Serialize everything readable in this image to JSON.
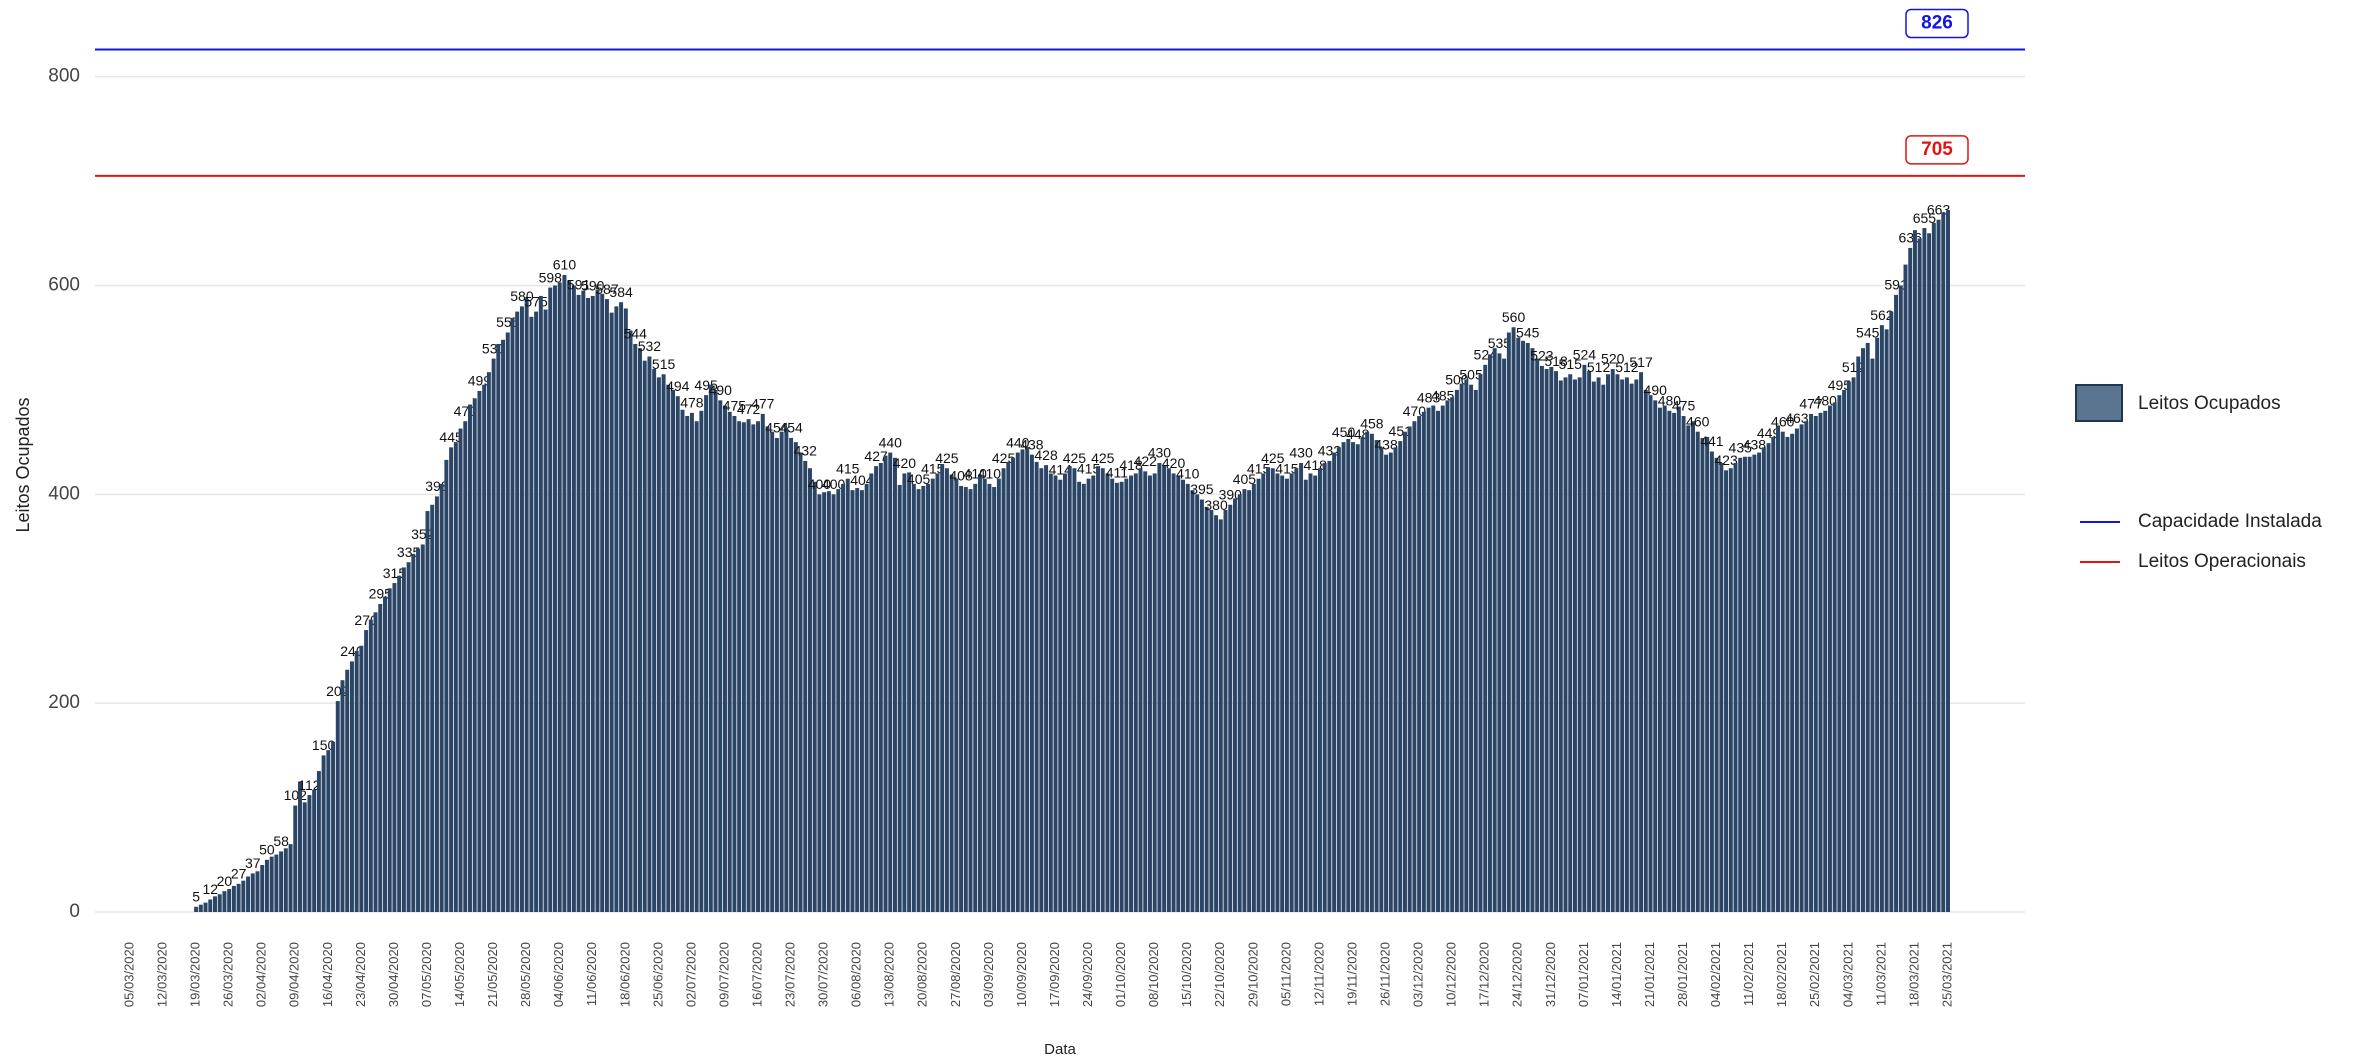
{
  "chart_data": {
    "type": "bar",
    "y_label": "Leitos Ocupados",
    "x_label": "Data",
    "color": "#2b4566",
    "grid": true,
    "ylim": [
      0,
      860
    ],
    "yticks": [
      0,
      200,
      400,
      600,
      800
    ],
    "legend": {
      "name": "Leitos Ocupados"
    },
    "hlines": [
      {
        "name": "Capacidade Instalada",
        "value": 826,
        "color": "#1414e0"
      },
      {
        "name": "Leitos Operacionais",
        "value": 705,
        "color": "#e01414"
      }
    ],
    "categories": [
      "05/03/2020",
      null,
      null,
      null,
      null,
      null,
      null,
      "12/03/2020",
      null,
      null,
      null,
      null,
      null,
      null,
      "19/03/2020",
      null,
      null,
      null,
      null,
      null,
      null,
      "26/03/2020",
      null,
      null,
      null,
      null,
      null,
      null,
      "02/04/2020",
      null,
      null,
      null,
      null,
      null,
      null,
      "09/04/2020",
      null,
      null,
      null,
      null,
      null,
      null,
      "16/04/2020",
      null,
      null,
      null,
      null,
      null,
      null,
      "23/04/2020",
      null,
      null,
      null,
      null,
      null,
      null,
      "30/04/2020",
      null,
      null,
      null,
      null,
      null,
      null,
      "07/05/2020",
      null,
      null,
      null,
      null,
      null,
      null,
      "14/05/2020",
      null,
      null,
      null,
      null,
      null,
      null,
      "21/05/2020",
      null,
      null,
      null,
      null,
      null,
      null,
      "28/05/2020",
      null,
      null,
      null,
      null,
      null,
      null,
      "04/06/2020",
      null,
      null,
      null,
      null,
      null,
      null,
      "11/06/2020",
      null,
      null,
      null,
      null,
      null,
      null,
      "18/06/2020",
      null,
      null,
      null,
      null,
      null,
      null,
      "25/06/2020",
      null,
      null,
      null,
      null,
      null,
      null,
      "02/07/2020",
      null,
      null,
      null,
      null,
      null,
      null,
      "09/07/2020",
      null,
      null,
      null,
      null,
      null,
      null,
      "16/07/2020",
      null,
      null,
      null,
      null,
      null,
      null,
      "23/07/2020",
      null,
      null,
      null,
      null,
      null,
      null,
      "30/07/2020",
      null,
      null,
      null,
      null,
      null,
      null,
      "06/08/2020",
      null,
      null,
      null,
      null,
      null,
      null,
      "13/08/2020",
      null,
      null,
      null,
      null,
      null,
      null,
      "20/08/2020",
      null,
      null,
      null,
      null,
      null,
      null,
      "27/08/2020",
      null,
      null,
      null,
      null,
      null,
      null,
      "03/09/2020",
      null,
      null,
      null,
      null,
      null,
      null,
      "10/09/2020",
      null,
      null,
      null,
      null,
      null,
      null,
      "17/09/2020",
      null,
      null,
      null,
      null,
      null,
      null,
      "24/09/2020",
      null,
      null,
      null,
      null,
      null,
      null,
      "01/10/2020",
      null,
      null,
      null,
      null,
      null,
      null,
      "08/10/2020",
      null,
      null,
      null,
      null,
      null,
      null,
      "15/10/2020",
      null,
      null,
      null,
      null,
      null,
      null,
      "22/10/2020",
      null,
      null,
      null,
      null,
      null,
      null,
      "29/10/2020",
      null,
      null,
      null,
      null,
      null,
      null,
      "05/11/2020",
      null,
      null,
      null,
      null,
      null,
      null,
      "12/11/2020",
      null,
      null,
      null,
      null,
      null,
      null,
      "19/11/2020",
      null,
      null,
      null,
      null,
      null,
      null,
      "26/11/2020",
      null,
      null,
      null,
      null,
      null,
      null,
      "03/12/2020",
      null,
      null,
      null,
      null,
      null,
      null,
      "10/12/2020",
      null,
      null,
      null,
      null,
      null,
      null,
      "17/12/2020",
      null,
      null,
      null,
      null,
      null,
      null,
      "24/12/2020",
      null,
      null,
      null,
      null,
      null,
      null,
      "31/12/2020",
      null,
      null,
      null,
      null,
      null,
      null,
      "07/01/2021",
      null,
      null,
      null,
      null,
      null,
      null,
      "14/01/2021",
      null,
      null,
      null,
      null,
      null,
      null,
      "21/01/2021",
      null,
      null,
      null,
      null,
      null,
      null,
      "28/01/2021",
      null,
      null,
      null,
      null,
      null,
      null,
      "04/02/2021",
      null,
      null,
      null,
      null,
      null,
      null,
      "11/02/2021",
      null,
      null,
      null,
      null,
      null,
      null,
      "18/02/2021",
      null,
      null,
      null,
      null,
      null,
      null,
      "25/02/2021",
      null,
      null,
      null,
      null,
      null,
      null,
      "04/03/2021",
      null,
      null,
      null,
      null,
      null,
      null,
      "11/03/2021",
      null,
      null,
      null,
      null,
      null,
      null,
      "18/03/2021",
      null,
      null,
      null,
      null,
      null,
      null,
      "25/03/2021"
    ],
    "values": [
      null,
      null,
      null,
      null,
      null,
      null,
      null,
      null,
      null,
      null,
      null,
      null,
      null,
      null,
      5,
      7,
      9,
      12,
      15,
      17,
      20,
      22,
      25,
      27,
      30,
      34,
      37,
      39,
      45,
      50,
      53,
      55,
      58,
      61,
      65,
      102,
      125,
      105,
      112,
      117,
      135,
      150,
      155,
      163,
      202,
      222,
      232,
      240,
      250,
      255,
      270,
      280,
      287,
      295,
      302,
      310,
      315,
      322,
      330,
      335,
      343,
      348,
      352,
      384,
      390,
      398,
      410,
      433,
      445,
      450,
      463,
      470,
      486,
      492,
      499,
      505,
      517,
      530,
      544,
      548,
      555,
      569,
      575,
      580,
      587,
      570,
      575,
      590,
      577,
      598,
      600,
      603,
      610,
      605,
      600,
      591,
      595,
      588,
      590,
      596,
      592,
      587,
      574,
      580,
      584,
      578,
      557,
      544,
      540,
      528,
      532,
      520,
      512,
      515,
      505,
      500,
      494,
      481,
      475,
      478,
      470,
      480,
      495,
      505,
      500,
      490,
      485,
      479,
      475,
      470,
      469,
      472,
      467,
      470,
      477,
      465,
      460,
      454,
      460,
      464,
      454,
      450,
      440,
      432,
      425,
      412,
      400,
      402,
      403,
      400,
      405,
      410,
      415,
      404,
      406,
      404,
      410,
      420,
      427,
      430,
      437,
      440,
      435,
      409,
      420,
      421,
      410,
      405,
      408,
      410,
      415,
      420,
      429,
      425,
      419,
      415,
      408,
      407,
      405,
      410,
      419,
      415,
      410,
      407,
      415,
      425,
      431,
      435,
      440,
      443,
      445,
      438,
      431,
      425,
      428,
      420,
      418,
      414,
      420,
      427,
      425,
      412,
      410,
      415,
      418,
      427,
      425,
      420,
      415,
      411,
      412,
      415,
      418,
      420,
      425,
      422,
      418,
      420,
      430,
      428,
      425,
      420,
      418,
      414,
      410,
      404,
      400,
      395,
      388,
      385,
      380,
      376,
      385,
      390,
      396,
      400,
      405,
      404,
      410,
      415,
      420,
      426,
      425,
      420,
      418,
      415,
      420,
      425,
      430,
      414,
      420,
      418,
      425,
      430,
      432,
      440,
      445,
      450,
      453,
      450,
      448,
      455,
      460,
      458,
      452,
      445,
      438,
      440,
      445,
      451,
      460,
      465,
      470,
      475,
      479,
      483,
      485,
      480,
      485,
      490,
      493,
      500,
      506,
      510,
      505,
      500,
      515,
      524,
      534,
      540,
      535,
      530,
      555,
      560,
      550,
      547,
      545,
      540,
      530,
      523,
      520,
      522,
      518,
      509,
      512,
      515,
      510,
      512,
      524,
      518,
      508,
      512,
      505,
      515,
      520,
      515,
      510,
      512,
      506,
      510,
      517,
      500,
      495,
      490,
      483,
      485,
      480,
      478,
      484,
      475,
      466,
      470,
      460,
      454,
      455,
      441,
      435,
      430,
      423,
      425,
      430,
      435,
      436,
      436,
      438,
      440,
      445,
      449,
      455,
      466,
      460,
      455,
      458,
      463,
      467,
      470,
      477,
      475,
      478,
      480,
      485,
      488,
      495,
      500,
      508,
      512,
      532,
      540,
      545,
      530,
      550,
      562,
      558,
      575,
      591,
      600,
      620,
      636,
      653,
      645,
      655,
      650,
      660,
      663,
      670,
      672
    ]
  }
}
